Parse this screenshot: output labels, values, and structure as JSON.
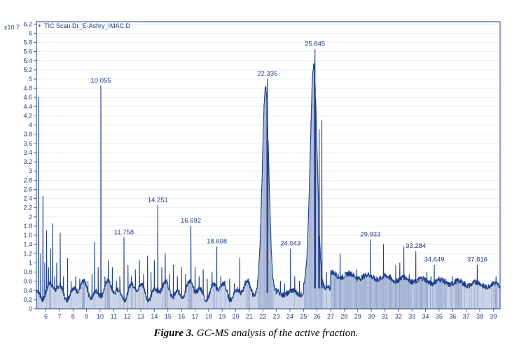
{
  "caption": {
    "label": "Figure 3.",
    "text": "GC-MS analysis of the active fraction."
  },
  "chart_data": {
    "type": "area",
    "legend": "TIC Scan Dr_E-Ashry_IMAC.D",
    "y_multiplier": "x10^7",
    "y_multiplier_text": "x10 7",
    "xlim": [
      5.3,
      39.5
    ],
    "ylim": [
      0,
      6.25
    ],
    "x_ticks": [
      6,
      7,
      8,
      9,
      10,
      11,
      12,
      13,
      14,
      15,
      16,
      17,
      18,
      19,
      20,
      21,
      22,
      23,
      24,
      25,
      26,
      27,
      28,
      29,
      30,
      31,
      32,
      33,
      34,
      35,
      36,
      37,
      38,
      39
    ],
    "y_ticks": [
      0,
      0.2,
      0.4,
      0.6,
      0.8,
      1,
      1.2,
      1.4,
      1.6,
      1.8,
      2,
      2.2,
      2.4,
      2.6,
      2.8,
      3,
      3.2,
      3.4,
      3.6,
      3.8,
      4,
      4.2,
      4.4,
      4.6,
      4.8,
      5,
      5.2,
      5.4,
      5.6,
      5.8,
      6,
      6.2
    ],
    "y_tick_labels": [
      "0",
      "0.2",
      "0.4",
      "0.6",
      "0.8",
      "1",
      "1.2",
      "1.4",
      "1.6",
      "1.8",
      "2",
      "2.2",
      "2.4",
      "2.6",
      "2.8",
      "3",
      "3.2",
      "3.4",
      "3.6",
      "3.8",
      "4",
      "4.2",
      "4.4",
      "4.6",
      "4.8",
      "5",
      "5.2",
      "5.4",
      "5.6",
      "5.8",
      "6",
      "6.2"
    ],
    "labeled_peaks": [
      {
        "label": "10.055",
        "x": 10.055,
        "y": 4.85
      },
      {
        "label": "11.758",
        "x": 11.758,
        "y": 1.55
      },
      {
        "label": "14.251",
        "x": 14.251,
        "y": 2.25
      },
      {
        "label": "16.692",
        "x": 16.692,
        "y": 1.8
      },
      {
        "label": "18.608",
        "x": 18.608,
        "y": 1.35
      },
      {
        "label": "22.335",
        "x": 22.335,
        "y": 5.0
      },
      {
        "label": "24.043",
        "x": 24.043,
        "y": 1.3
      },
      {
        "label": "25.845",
        "x": 25.845,
        "y": 5.65
      },
      {
        "label": "29.933",
        "x": 29.933,
        "y": 1.5
      },
      {
        "label": "33.284",
        "x": 33.284,
        "y": 1.25
      },
      {
        "label": "34.649",
        "x": 34.649,
        "y": 0.95
      },
      {
        "label": "37.816",
        "x": 37.816,
        "y": 0.95
      }
    ],
    "minor_peaks": [
      {
        "x": 5.45,
        "y": 4.6
      },
      {
        "x": 5.62,
        "y": 1.2
      },
      {
        "x": 5.78,
        "y": 2.45
      },
      {
        "x": 5.92,
        "y": 1.0
      },
      {
        "x": 6.05,
        "y": 1.7
      },
      {
        "x": 6.2,
        "y": 0.9
      },
      {
        "x": 6.35,
        "y": 1.3
      },
      {
        "x": 6.5,
        "y": 1.85
      },
      {
        "x": 6.65,
        "y": 0.7
      },
      {
        "x": 6.8,
        "y": 1.0
      },
      {
        "x": 7.05,
        "y": 1.65
      },
      {
        "x": 7.3,
        "y": 0.7
      },
      {
        "x": 7.6,
        "y": 1.1
      },
      {
        "x": 7.85,
        "y": 0.6
      },
      {
        "x": 8.2,
        "y": 0.7
      },
      {
        "x": 8.5,
        "y": 0.65
      },
      {
        "x": 8.8,
        "y": 0.55
      },
      {
        "x": 9.1,
        "y": 0.6
      },
      {
        "x": 9.4,
        "y": 0.75
      },
      {
        "x": 9.6,
        "y": 1.45
      },
      {
        "x": 9.85,
        "y": 0.9
      },
      {
        "x": 10.35,
        "y": 0.7
      },
      {
        "x": 10.6,
        "y": 1.05
      },
      {
        "x": 10.9,
        "y": 0.9
      },
      {
        "x": 11.2,
        "y": 0.6
      },
      {
        "x": 11.45,
        "y": 0.7
      },
      {
        "x": 12.05,
        "y": 0.95
      },
      {
        "x": 12.3,
        "y": 0.7
      },
      {
        "x": 12.6,
        "y": 0.85
      },
      {
        "x": 12.9,
        "y": 1.05
      },
      {
        "x": 13.2,
        "y": 0.75
      },
      {
        "x": 13.5,
        "y": 1.15
      },
      {
        "x": 13.75,
        "y": 0.8
      },
      {
        "x": 14.0,
        "y": 1.05
      },
      {
        "x": 14.55,
        "y": 0.9
      },
      {
        "x": 14.8,
        "y": 1.2
      },
      {
        "x": 15.1,
        "y": 0.75
      },
      {
        "x": 15.4,
        "y": 0.95
      },
      {
        "x": 15.7,
        "y": 0.7
      },
      {
        "x": 16.0,
        "y": 0.9
      },
      {
        "x": 16.3,
        "y": 0.75
      },
      {
        "x": 17.0,
        "y": 0.9
      },
      {
        "x": 17.3,
        "y": 0.7
      },
      {
        "x": 17.6,
        "y": 0.85
      },
      {
        "x": 17.9,
        "y": 0.65
      },
      {
        "x": 18.25,
        "y": 0.8
      },
      {
        "x": 18.9,
        "y": 0.7
      },
      {
        "x": 19.2,
        "y": 0.6
      },
      {
        "x": 19.55,
        "y": 0.65
      },
      {
        "x": 19.9,
        "y": 0.55
      },
      {
        "x": 20.3,
        "y": 1.1
      },
      {
        "x": 20.7,
        "y": 0.5
      },
      {
        "x": 21.0,
        "y": 0.55
      },
      {
        "x": 23.3,
        "y": 0.6
      },
      {
        "x": 23.6,
        "y": 0.55
      },
      {
        "x": 24.35,
        "y": 0.7
      },
      {
        "x": 24.7,
        "y": 0.6
      },
      {
        "x": 26.15,
        "y": 3.9
      },
      {
        "x": 26.35,
        "y": 4.1
      },
      {
        "x": 26.7,
        "y": 0.8
      },
      {
        "x": 27.3,
        "y": 0.75
      },
      {
        "x": 27.7,
        "y": 1.2
      },
      {
        "x": 28.3,
        "y": 0.8
      },
      {
        "x": 28.9,
        "y": 0.85
      },
      {
        "x": 29.4,
        "y": 0.75
      },
      {
        "x": 30.4,
        "y": 0.7
      },
      {
        "x": 30.9,
        "y": 1.4
      },
      {
        "x": 31.4,
        "y": 0.75
      },
      {
        "x": 31.8,
        "y": 0.95
      },
      {
        "x": 32.1,
        "y": 1.0
      },
      {
        "x": 32.4,
        "y": 1.35
      },
      {
        "x": 32.8,
        "y": 0.75
      },
      {
        "x": 33.7,
        "y": 0.7
      },
      {
        "x": 34.1,
        "y": 0.8
      },
      {
        "x": 34.4,
        "y": 0.7
      },
      {
        "x": 35.0,
        "y": 0.7
      },
      {
        "x": 35.5,
        "y": 0.65
      },
      {
        "x": 36.0,
        "y": 0.7
      },
      {
        "x": 36.4,
        "y": 0.65
      },
      {
        "x": 36.9,
        "y": 0.6
      },
      {
        "x": 37.3,
        "y": 0.55
      },
      {
        "x": 38.3,
        "y": 0.55
      },
      {
        "x": 38.7,
        "y": 0.5
      },
      {
        "x": 39.2,
        "y": 0.7
      }
    ],
    "broad_peaks": [
      {
        "center": 22.2,
        "height": 4.5,
        "width": 0.34
      },
      {
        "center": 25.75,
        "height": 4.85,
        "width": 0.36
      }
    ],
    "grid": true,
    "legend_position": "top-left",
    "colors": {
      "line": "#1d3f8e",
      "fill": "#b8c5dd",
      "axis": "#1d3f8e",
      "grid": "#d9e1ee"
    }
  }
}
